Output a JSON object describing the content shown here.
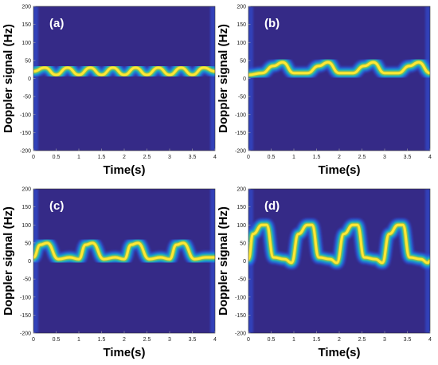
{
  "chart_data": [
    {
      "type": "heatmap",
      "panel_label": "(a)",
      "xlabel": "Time(s)",
      "ylabel": "Doppler signal (Hz)",
      "xlim": [
        0,
        4
      ],
      "ylim": [
        -200,
        200
      ],
      "x_ticks": [
        "0",
        "0.5",
        "1",
        "1.5",
        "2",
        "2.5",
        "3",
        "3.5",
        "4"
      ],
      "y_ticks": [
        "200",
        "150",
        "100",
        "50",
        "0",
        "-50",
        "-100",
        "-150",
        "-200"
      ],
      "colormap": [
        "#3e26a8",
        "#2f5df5",
        "#15a2d6",
        "#2fbea0",
        "#b9be3a",
        "#fce934"
      ],
      "background_color": "#352a87",
      "curve": {
        "x": [
          0,
          0.25,
          0.5,
          0.75,
          1,
          1.25,
          1.5,
          1.75,
          2,
          2.25,
          2.5,
          2.75,
          3,
          3.25,
          3.5,
          3.75,
          4
        ],
        "y": [
          20,
          30,
          10,
          30,
          10,
          30,
          10,
          30,
          10,
          30,
          10,
          30,
          10,
          30,
          10,
          30,
          20
        ]
      }
    },
    {
      "type": "heatmap",
      "panel_label": "(b)",
      "xlabel": "Time(s)",
      "ylabel": "Doppler signal (Hz)",
      "xlim": [
        0,
        4
      ],
      "ylim": [
        -200,
        200
      ],
      "x_ticks": [
        "0",
        "0.5",
        "1",
        "1.5",
        "2",
        "2.5",
        "3",
        "3.5",
        "4"
      ],
      "y_ticks": [
        "200",
        "150",
        "100",
        "50",
        "0",
        "-50",
        "-100",
        "-150",
        "-200"
      ],
      "colormap": [
        "#3e26a8",
        "#2f5df5",
        "#15a2d6",
        "#2fbea0",
        "#b9be3a",
        "#fce934"
      ],
      "background_color": "#352a87",
      "curve": {
        "x": [
          0,
          0.3,
          0.55,
          0.75,
          1.0,
          1.3,
          1.55,
          1.75,
          2.0,
          2.3,
          2.55,
          2.75,
          3.0,
          3.3,
          3.55,
          3.75,
          4.0
        ],
        "y": [
          10,
          15,
          35,
          45,
          15,
          15,
          35,
          45,
          15,
          15,
          35,
          45,
          15,
          15,
          35,
          45,
          15
        ]
      }
    },
    {
      "type": "heatmap",
      "panel_label": "(c)",
      "xlabel": "Time(s)",
      "ylabel": "Doppler signal (Hz)",
      "xlim": [
        0,
        4
      ],
      "ylim": [
        -200,
        200
      ],
      "x_ticks": [
        "0",
        "0.5",
        "1",
        "1.5",
        "2",
        "2.5",
        "3",
        "3.5",
        "4"
      ],
      "y_ticks": [
        "200",
        "150",
        "100",
        "50",
        "0",
        "-50",
        "-100",
        "-150",
        "-200"
      ],
      "colormap": [
        "#3e26a8",
        "#2f5df5",
        "#15a2d6",
        "#2fbea0",
        "#b9be3a",
        "#fce934"
      ],
      "background_color": "#352a87",
      "curve": {
        "x": [
          0,
          0.15,
          0.3,
          0.55,
          0.8,
          1.0,
          1.15,
          1.3,
          1.55,
          1.8,
          2.0,
          2.15,
          2.3,
          2.55,
          2.8,
          3.0,
          3.15,
          3.3,
          3.55,
          3.8,
          4.0
        ],
        "y": [
          10,
          45,
          50,
          5,
          10,
          5,
          45,
          50,
          5,
          10,
          5,
          45,
          50,
          5,
          10,
          5,
          45,
          50,
          5,
          10,
          10
        ]
      }
    },
    {
      "type": "heatmap",
      "panel_label": "(d)",
      "xlabel": "Time(s)",
      "ylabel": "Doppler signal (Hz)",
      "xlim": [
        0,
        4
      ],
      "ylim": [
        -200,
        200
      ],
      "x_ticks": [
        "0",
        "0.5",
        "1",
        "1.5",
        "2",
        "2.5",
        "3",
        "3.5",
        "4"
      ],
      "y_ticks": [
        "200",
        "150",
        "100",
        "50",
        "0",
        "-50",
        "-100",
        "-150",
        "-200"
      ],
      "colormap": [
        "#3e26a8",
        "#2f5df5",
        "#15a2d6",
        "#2fbea0",
        "#b9be3a",
        "#fce934"
      ],
      "background_color": "#352a87",
      "curve": {
        "x": [
          0,
          0.1,
          0.3,
          0.4,
          0.55,
          0.8,
          0.95,
          1.1,
          1.3,
          1.4,
          1.55,
          1.8,
          1.95,
          2.1,
          2.3,
          2.4,
          2.55,
          2.8,
          2.95,
          3.1,
          3.3,
          3.4,
          3.55,
          3.8,
          3.95,
          4.0
        ],
        "y": [
          5,
          75,
          100,
          100,
          10,
          5,
          -5,
          75,
          100,
          100,
          10,
          5,
          -5,
          75,
          100,
          100,
          10,
          5,
          -5,
          75,
          100,
          100,
          10,
          5,
          -5,
          0
        ]
      }
    }
  ]
}
